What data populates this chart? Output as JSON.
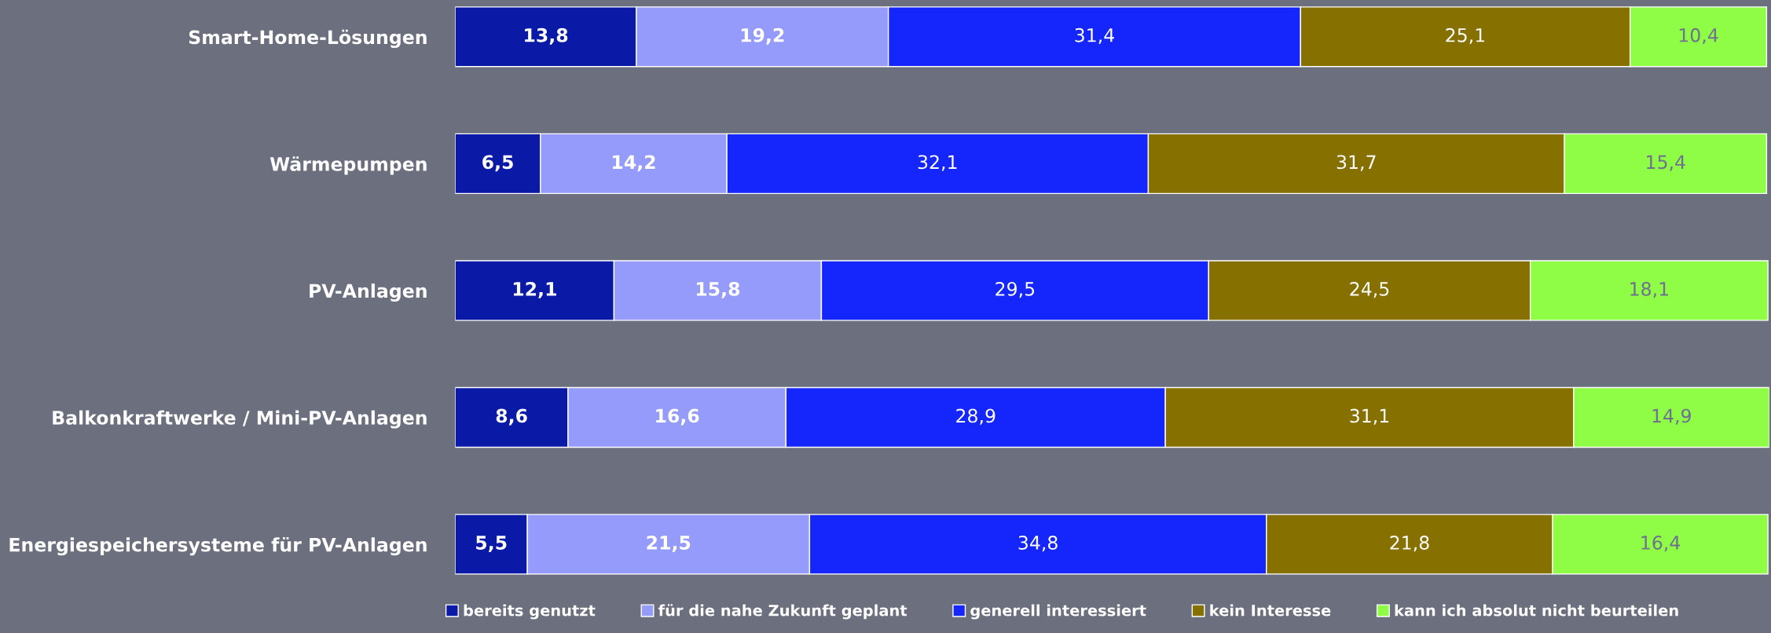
{
  "chart_data": {
    "type": "bar",
    "orientation": "horizontal",
    "stacked": true,
    "legend": "bottom",
    "grid": false,
    "categories": [
      "Smart-Home-Lösungen",
      "Wärmepumpen",
      "PV-Anlagen",
      "Balkonkraftwerke / Mini-PV-Anlagen",
      "Energiespeichersysteme für PV-Anlagen"
    ],
    "series": [
      {
        "name": "bereits genutzt",
        "color": "#0b1aa6",
        "values": [
          13.8,
          6.5,
          12.1,
          8.6,
          5.5
        ],
        "value_labels": [
          "13,8",
          "6,5",
          "12,1",
          "8,6",
          "5,5"
        ]
      },
      {
        "name": "für die nahe Zukunft geplant",
        "color": "#959bfa",
        "values": [
          19.2,
          14.2,
          15.8,
          16.6,
          21.5
        ],
        "value_labels": [
          "19,2",
          "14,2",
          "15,8",
          "16,6",
          "21,5"
        ]
      },
      {
        "name": "generell interessiert",
        "color": "#1426fb",
        "values": [
          31.4,
          32.1,
          29.5,
          28.9,
          34.8
        ],
        "value_labels": [
          "31,4",
          "32,1",
          "29,5",
          "28,9",
          "34,8"
        ]
      },
      {
        "name": "kein Interesse",
        "color": "#867000",
        "values": [
          25.1,
          31.7,
          24.5,
          31.1,
          21.8
        ],
        "value_labels": [
          "25,1",
          "31,7",
          "24,5",
          "31,1",
          "21,8"
        ]
      },
      {
        "name": "kann ich absolut nicht beurteilen",
        "color": "#8ffc45",
        "values": [
          10.4,
          15.4,
          18.1,
          14.9,
          16.4
        ],
        "value_labels": [
          "10,4",
          "15,4",
          "18,1",
          "14,9",
          "16,4"
        ]
      }
    ]
  }
}
